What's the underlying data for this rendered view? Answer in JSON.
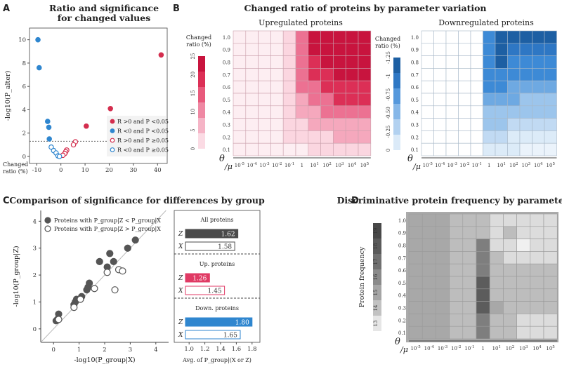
{
  "panels": {
    "a": {
      "label": "A",
      "title_line1": "Ratio and significance",
      "title_line2": "for changed values"
    },
    "b": {
      "label": "B",
      "title": "Changed ratio of proteins by parameter variation",
      "up_title": "Upregulated proteins",
      "down_title": "Downregulated proteins"
    },
    "c": {
      "label": "C",
      "title": "Comparison of significance for differences by group"
    },
    "d": {
      "label": "D",
      "title": "Discriminative protein frequency by parameters"
    }
  },
  "chart_data": [
    {
      "id": "A",
      "type": "scatter",
      "ylabel": "-log10(P_alter)",
      "xlabel": "Changed ratio (%)",
      "xticks": [
        -10,
        0,
        10,
        20,
        30,
        40
      ],
      "yticks": [
        0,
        2,
        4,
        6,
        8,
        10
      ],
      "xlim": [
        -13,
        44
      ],
      "ylim": [
        -0.6,
        11
      ],
      "threshold": 1.3,
      "legend": [
        {
          "label": "R >0 and P <0.05",
          "color": "#d42e4e",
          "style": "filled"
        },
        {
          "label": "R <0 and P <0.05",
          "color": "#2f86cf",
          "style": "filled"
        },
        {
          "label": "R >0 and P ≥0.05",
          "color": "#d42e4e",
          "style": "open"
        },
        {
          "label": "R <0 and P ≥0.05",
          "color": "#2f86cf",
          "style": "open"
        }
      ],
      "series": [
        {
          "name": "up_sig",
          "points": [
            [
              41.5,
              8.7
            ],
            [
              20.5,
              4.1
            ],
            [
              10.5,
              2.6
            ]
          ]
        },
        {
          "name": "down_sig",
          "points": [
            [
              -9.5,
              10.0
            ],
            [
              -9.0,
              7.6
            ],
            [
              -5.5,
              3.0
            ],
            [
              -5.0,
              2.5
            ],
            [
              -4.8,
              1.5
            ]
          ]
        },
        {
          "name": "up_ns",
          "points": [
            [
              6.0,
              1.25
            ],
            [
              5.2,
              1.0
            ],
            [
              2.4,
              0.55
            ],
            [
              2.0,
              0.4
            ],
            [
              1.6,
              0.25
            ],
            [
              0.8,
              0.1
            ]
          ]
        },
        {
          "name": "down_ns",
          "points": [
            [
              -4.0,
              0.8
            ],
            [
              -3.0,
              0.5
            ],
            [
              -2.0,
              0.3
            ],
            [
              -1.2,
              0.05
            ],
            [
              -0.6,
              0.0
            ]
          ]
        }
      ]
    },
    {
      "id": "B-up",
      "type": "heatmap",
      "title": "Upregulated proteins",
      "colorbar_label": "Changed ratio (%)",
      "colorbar_ticks": [
        "0",
        "5",
        "10",
        "15",
        "20",
        "25"
      ],
      "ylabel": "θ",
      "xlabel": "μ",
      "theta": [
        "1.0",
        "0.9",
        "0.8",
        "0.7",
        "0.6",
        "0.5",
        "0.4",
        "0.3",
        "0.2",
        "0.1"
      ],
      "mu": [
        "10-5",
        "10-4",
        "10-3",
        "10-2",
        "10-1",
        "1",
        "101",
        "102",
        "103",
        "104",
        "105"
      ],
      "values": [
        [
          0,
          0,
          0,
          0,
          3,
          13,
          25,
          25,
          25,
          25,
          25
        ],
        [
          0,
          0,
          0,
          0,
          3,
          13,
          25,
          25,
          25,
          25,
          25
        ],
        [
          0,
          0,
          0,
          0,
          3,
          13,
          21,
          25,
          25,
          25,
          25
        ],
        [
          0,
          0,
          0,
          0,
          3,
          13,
          21,
          21,
          25,
          25,
          25
        ],
        [
          0,
          0,
          0,
          0,
          3,
          13,
          13,
          21,
          21,
          21,
          21
        ],
        [
          0,
          0,
          0,
          0,
          3,
          8,
          13,
          13,
          21,
          21,
          21
        ],
        [
          0,
          0,
          0,
          0,
          3,
          8,
          8,
          13,
          13,
          13,
          13
        ],
        [
          0,
          0,
          0,
          0,
          3,
          3,
          8,
          8,
          8,
          8,
          8
        ],
        [
          0,
          0,
          0,
          0,
          3,
          3,
          3,
          3,
          8,
          8,
          8
        ],
        [
          0,
          0,
          0,
          0,
          0,
          0,
          3,
          3,
          3,
          3,
          3
        ]
      ]
    },
    {
      "id": "B-down",
      "type": "heatmap",
      "title": "Downregulated proteins",
      "colorbar_label": "Changed ratio (%)",
      "colorbar_ticks": [
        "0",
        "-0.25",
        "-0.50",
        "-0.75",
        "-1",
        "-1.25"
      ],
      "ylabel": "θ",
      "xlabel": "μ",
      "theta": [
        "1.0",
        "0.9",
        "0.8",
        "0.7",
        "0.6",
        "0.5",
        "0.4",
        "0.3",
        "0.2",
        "0.1"
      ],
      "mu": [
        "10-5",
        "10-4",
        "10-3",
        "10-2",
        "10-1",
        "1",
        "101",
        "102",
        "103",
        "104",
        "105"
      ],
      "values": [
        [
          0,
          0,
          0,
          0,
          0,
          -0.9,
          -1.25,
          -1.25,
          -1.25,
          -1.25,
          -1.25
        ],
        [
          0,
          0,
          0,
          0,
          0,
          -0.9,
          -1.25,
          -1.0,
          -1.0,
          -1.0,
          -1.0
        ],
        [
          0,
          0,
          0,
          0,
          0,
          -0.9,
          -1.25,
          -0.9,
          -0.9,
          -0.9,
          -0.9
        ],
        [
          0,
          0,
          0,
          0,
          0,
          -0.9,
          -0.9,
          -0.9,
          -0.9,
          -0.9,
          -0.9
        ],
        [
          0,
          0,
          0,
          0,
          0,
          -0.9,
          -0.9,
          -0.6,
          -0.6,
          -0.6,
          -0.6
        ],
        [
          0,
          0,
          0,
          0,
          0,
          -0.6,
          -0.6,
          -0.6,
          -0.4,
          -0.4,
          -0.4
        ],
        [
          0,
          0,
          0,
          0,
          0,
          -0.4,
          -0.4,
          -0.4,
          -0.4,
          -0.4,
          -0.4
        ],
        [
          0,
          0,
          0,
          0,
          0,
          -0.4,
          -0.4,
          -0.25,
          -0.25,
          -0.25,
          -0.25
        ],
        [
          0,
          0,
          0,
          0,
          0,
          -0.25,
          -0.25,
          -0.1,
          -0.1,
          -0.1,
          -0.1
        ],
        [
          0,
          0,
          0,
          0,
          0,
          -0.1,
          -0.1,
          -0.1,
          -0.05,
          -0.05,
          -0.05
        ]
      ]
    },
    {
      "id": "C-scatter",
      "type": "scatter",
      "xlabel": "-log10(P_group|X)",
      "ylabel": "-log10(P_group|Z)",
      "xticks": [
        0,
        1,
        2,
        3,
        4
      ],
      "yticks": [
        0,
        1,
        2,
        3,
        4
      ],
      "xlim": [
        -0.5,
        4.5
      ],
      "ylim": [
        -0.5,
        4.4
      ],
      "legend": [
        {
          "label": "Proteins with P_group|Z < P_group|X",
          "style": "filled"
        },
        {
          "label": "Proteins with P_group|Z > P_group|X",
          "style": "open"
        }
      ],
      "series": [
        {
          "name": "Z<X",
          "points": [
            [
              0.1,
              0.3
            ],
            [
              0.15,
              0.35
            ],
            [
              0.2,
              0.55
            ],
            [
              0.8,
              0.9
            ],
            [
              0.85,
              1.0
            ],
            [
              0.9,
              1.1
            ],
            [
              1.1,
              1.2
            ],
            [
              1.3,
              1.45
            ],
            [
              1.35,
              1.55
            ],
            [
              1.4,
              1.7
            ],
            [
              1.8,
              2.5
            ],
            [
              2.1,
              2.3
            ],
            [
              2.2,
              2.8
            ],
            [
              2.35,
              2.5
            ],
            [
              2.9,
              3.0
            ],
            [
              3.2,
              3.3
            ]
          ]
        },
        {
          "name": "Z>X",
          "points": [
            [
              0.2,
              0.35
            ],
            [
              0.8,
              0.8
            ],
            [
              1.05,
              1.1
            ],
            [
              1.6,
              1.5
            ],
            [
              2.1,
              2.1
            ],
            [
              2.4,
              1.45
            ],
            [
              2.55,
              2.2
            ],
            [
              2.7,
              2.15
            ]
          ]
        }
      ]
    },
    {
      "id": "C-bars",
      "type": "bar",
      "xlabel": "Avg. of P_group|(X or Z)",
      "xticks": [
        "1.0",
        "1.2",
        "1.4",
        "1.6",
        "1.8"
      ],
      "xlim": [
        0.9,
        1.9
      ],
      "groups": [
        {
          "title": "All proteins",
          "Z": 1.62,
          "X": 1.58,
          "color": "#4a4a4a"
        },
        {
          "title": "Up. proteins",
          "Z": 1.26,
          "X": 1.45,
          "color": "#e03a64"
        },
        {
          "title": "Down. proteins",
          "Z": 1.8,
          "X": 1.65,
          "color": "#2f86cf"
        }
      ],
      "bar_labels": [
        "Z",
        "X"
      ]
    },
    {
      "id": "D",
      "type": "heatmap",
      "colorbar_label": "Protein frequency",
      "colorbar_ticks": [
        "13",
        "14",
        "15",
        "16",
        "17",
        "18",
        "19"
      ],
      "ylabel": "θ",
      "xlabel": "μ",
      "theta": [
        "1.0",
        "0.9",
        "0.8",
        "0.7",
        "0.6",
        "0.5",
        "0.4",
        "0.3",
        "0.2",
        "0.1"
      ],
      "mu": [
        "10-5",
        "10-4",
        "10-3",
        "10-2",
        "10-1",
        "1",
        "101",
        "102",
        "103",
        "104",
        "105"
      ],
      "values": [
        [
          16,
          16,
          16,
          15,
          15,
          15,
          14,
          14,
          14,
          14,
          14
        ],
        [
          16,
          16,
          16,
          15,
          15,
          15,
          14,
          15,
          14,
          14,
          14
        ],
        [
          16,
          16,
          16,
          15,
          15,
          17,
          14,
          14,
          13,
          14,
          14
        ],
        [
          16,
          16,
          16,
          15,
          15,
          17,
          15,
          14,
          14,
          14,
          14
        ],
        [
          16,
          16,
          16,
          15,
          15,
          17,
          15,
          15,
          15,
          15,
          15
        ],
        [
          16,
          16,
          16,
          15,
          15,
          18,
          15,
          15,
          15,
          15,
          15
        ],
        [
          16,
          16,
          16,
          15,
          15,
          18,
          15,
          15,
          15,
          15,
          15
        ],
        [
          16,
          16,
          16,
          15,
          15,
          18,
          16,
          15,
          15,
          15,
          15
        ],
        [
          16,
          16,
          16,
          15,
          15,
          17,
          15,
          15,
          14,
          14,
          14
        ],
        [
          16,
          16,
          16,
          15,
          15,
          17,
          15,
          15,
          14,
          14,
          14
        ]
      ]
    }
  ]
}
